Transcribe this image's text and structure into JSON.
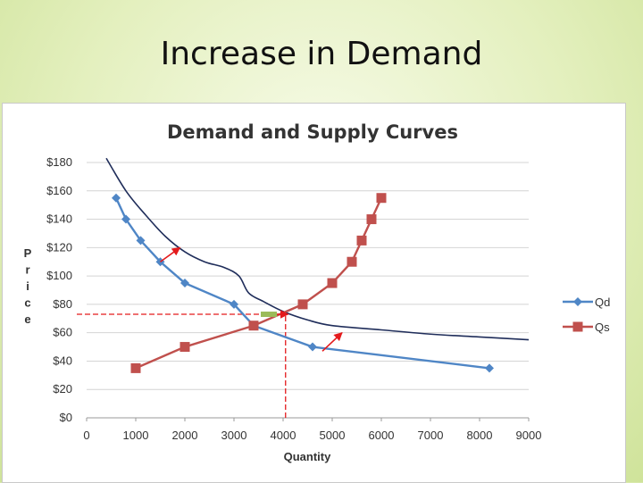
{
  "slide": {
    "title": "Increase in Demand"
  },
  "chart_data": {
    "type": "line",
    "title": "Demand and Supply Curves",
    "xlabel": "Quantity",
    "ylabel": "Price",
    "xlim": [
      0,
      9000
    ],
    "ylim": [
      0,
      180
    ],
    "x_ticks": [
      "0",
      "1000",
      "2000",
      "3000",
      "4000",
      "5000",
      "6000",
      "7000",
      "8000",
      "9000"
    ],
    "y_ticks": [
      "$0",
      "$20",
      "$40",
      "$60",
      "$80",
      "$100",
      "$120",
      "$140",
      "$160",
      "$180"
    ],
    "grid": "horizontal",
    "legend": "right",
    "series": [
      {
        "name": "Qd",
        "color": "#4f86c6",
        "marker": "diamond",
        "points": [
          [
            600,
            155
          ],
          [
            800,
            140
          ],
          [
            1100,
            125
          ],
          [
            1500,
            110
          ],
          [
            2000,
            95
          ],
          [
            3000,
            80
          ],
          [
            3400,
            65
          ],
          [
            4600,
            50
          ],
          [
            8200,
            35
          ]
        ]
      },
      {
        "name": "Qs",
        "color": "#c0504d",
        "marker": "square",
        "points": [
          [
            1000,
            35
          ],
          [
            2000,
            50
          ],
          [
            3400,
            65
          ],
          [
            4400,
            80
          ],
          [
            5000,
            95
          ],
          [
            5400,
            110
          ],
          [
            5600,
            125
          ],
          [
            5800,
            140
          ],
          [
            6000,
            155
          ]
        ]
      }
    ],
    "shifted_demand": {
      "color": "#1f2d5a",
      "points": [
        [
          400,
          183
        ],
        [
          800,
          160
        ],
        [
          1200,
          143
        ],
        [
          1600,
          128
        ],
        [
          2000,
          117
        ],
        [
          2400,
          110
        ],
        [
          2800,
          106
        ],
        [
          3100,
          100
        ],
        [
          3300,
          88
        ],
        [
          3600,
          82
        ],
        [
          4000,
          75
        ],
        [
          4500,
          69
        ],
        [
          5000,
          65
        ],
        [
          6000,
          62
        ],
        [
          7000,
          59
        ],
        [
          8000,
          57
        ],
        [
          9000,
          55
        ]
      ]
    },
    "annotations": {
      "arrows": [
        {
          "from": [
            1500,
            110
          ],
          "to": [
            1900,
            120
          ]
        },
        {
          "from": [
            4800,
            47
          ],
          "to": [
            5200,
            60
          ]
        }
      ],
      "reference_lines": [
        {
          "axis": "y",
          "value": 73,
          "from_x": -200,
          "to_x": 4100
        },
        {
          "axis": "x",
          "value": 4050,
          "from_y": 0,
          "to_y": 73
        }
      ],
      "equilibrium_marker": {
        "x": 3800,
        "y": 73,
        "color": "#9bbb59"
      },
      "equilibrium_arrow_tip": {
        "x": 4100,
        "y": 73
      }
    }
  }
}
